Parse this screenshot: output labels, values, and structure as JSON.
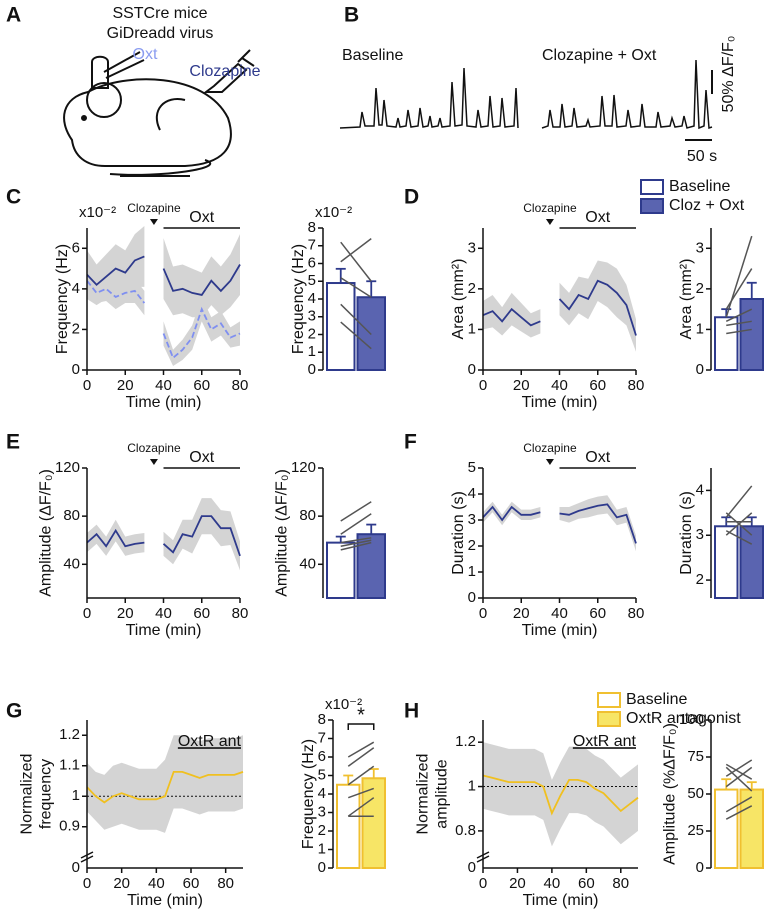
{
  "panel_labels": [
    "A",
    "B",
    "C",
    "D",
    "E",
    "F",
    "G",
    "H"
  ],
  "panel_a": {
    "line1": "SSTCre mice",
    "line2": "GiDreadd virus",
    "oxt": "Oxt",
    "clozapine": "Clozapine"
  },
  "panel_b": {
    "baseline": "Baseline",
    "treatment": "Clozapine + Oxt",
    "scale_y": "50% ΔF/F₀",
    "scale_x": "50 s"
  },
  "chart_data": [
    {
      "type": "line",
      "xlabel": "Time (min)",
      "ylabel": "Frequency (Hz)",
      "multiplier": "x10⁻²",
      "marker_label": "Clozapine",
      "period_label": "Oxt",
      "x": [
        0,
        5,
        10,
        15,
        20,
        25,
        30,
        35,
        40,
        45,
        50,
        55,
        60,
        65,
        70,
        75,
        80
      ],
      "xlim": [
        0,
        80
      ],
      "xticks": [
        0,
        20,
        40,
        60,
        80
      ],
      "ylim": [
        0,
        7
      ],
      "yticks": [
        0,
        2,
        4,
        6
      ],
      "band_color": "#d4d4d4",
      "series": [
        {
          "color": "#2e3a8c",
          "dashed": false,
          "values": [
            4.7,
            4.2,
            4.6,
            5.0,
            4.8,
            5.4,
            5.6,
            null,
            5.0,
            3.9,
            4.0,
            3.8,
            3.7,
            4.4,
            3.9,
            4.4,
            5.2
          ],
          "errors": [
            1.2,
            1.0,
            1.1,
            1.2,
            1.1,
            1.3,
            1.5,
            null,
            1.5,
            1.2,
            1.2,
            1.2,
            1.1,
            1.2,
            1.2,
            1.3,
            1.5
          ]
        },
        {
          "color": "#7f8ff0",
          "dashed": true,
          "values": [
            4.4,
            3.8,
            4.0,
            3.6,
            3.8,
            3.9,
            3.3,
            null,
            1.8,
            0.6,
            1.0,
            1.6,
            3.0,
            2.0,
            2.3,
            1.6,
            1.8
          ],
          "errors": [
            0.5,
            0.5,
            0.6,
            0.6,
            0.5,
            0.6,
            0.6,
            null,
            0.6,
            0.4,
            0.5,
            0.6,
            0.6,
            0.6,
            0.6,
            0.5,
            0.6
          ]
        }
      ]
    },
    {
      "type": "bar",
      "ylabel": "Frequency (Hz)",
      "multiplier": "x10⁻²",
      "ylim": [
        0,
        8
      ],
      "yticks": [
        0,
        1,
        2,
        3,
        4,
        5,
        6,
        7,
        8
      ],
      "series": [
        {
          "color": "#2e3a8c",
          "fill": "#ffffff",
          "values": [
            4.9
          ],
          "errors": [
            0.8
          ]
        },
        {
          "color": "#2e3a8c",
          "fill": "#5a64b0",
          "values": [
            4.1
          ],
          "errors": [
            0.9
          ]
        }
      ],
      "pair_color": "#555555",
      "pairs": [
        [
          6.1,
          7.4
        ],
        [
          7.2,
          5.0
        ],
        [
          5.2,
          4.1
        ],
        [
          3.7,
          2.0
        ],
        [
          2.7,
          1.2
        ]
      ]
    },
    {
      "type": "line",
      "xlabel": "Time (min)",
      "ylabel": "Area (mm²)",
      "marker_label": "Clozapine",
      "period_label": "Oxt",
      "x": [
        0,
        5,
        10,
        15,
        20,
        25,
        30,
        35,
        40,
        45,
        50,
        55,
        60,
        65,
        70,
        75,
        80
      ],
      "xlim": [
        0,
        80
      ],
      "xticks": [
        0,
        20,
        40,
        60,
        80
      ],
      "ylim": [
        0,
        3.5
      ],
      "yticks": [
        0,
        1,
        2,
        3
      ],
      "band_color": "#d4d4d4",
      "series": [
        {
          "color": "#2e3a8c",
          "dashed": false,
          "values": [
            1.35,
            1.45,
            1.2,
            1.5,
            1.3,
            1.1,
            1.2,
            null,
            1.75,
            1.5,
            1.85,
            1.75,
            2.2,
            2.1,
            1.9,
            1.6,
            0.85
          ],
          "errors": [
            0.35,
            0.4,
            0.35,
            0.4,
            0.35,
            0.3,
            0.3,
            null,
            0.4,
            0.4,
            0.45,
            0.5,
            0.5,
            0.55,
            0.6,
            0.5,
            0.4
          ]
        }
      ]
    },
    {
      "type": "bar",
      "ylabel": "Area (mm²)",
      "ylim": [
        0,
        3.5
      ],
      "yticks": [
        0,
        1,
        2,
        3
      ],
      "legend": true,
      "series": [
        {
          "name": "Baseline",
          "color": "#2e3a8c",
          "fill": "#ffffff",
          "values": [
            1.3
          ],
          "errors": [
            0.2
          ]
        },
        {
          "name": "Cloz + Oxt",
          "color": "#2e3a8c",
          "fill": "#5a64b0",
          "values": [
            1.75
          ],
          "errors": [
            0.4
          ]
        }
      ],
      "pair_color": "#555555",
      "pairs": [
        [
          1.3,
          3.3
        ],
        [
          1.5,
          2.5
        ],
        [
          1.2,
          1.5
        ],
        [
          1.1,
          1.2
        ],
        [
          0.9,
          1.0
        ]
      ]
    },
    {
      "type": "line",
      "xlabel": "Time (min)",
      "ylabel": "Amplitude (ΔF/F₀)",
      "marker_label": "Clozapine",
      "period_label": "Oxt",
      "x": [
        0,
        5,
        10,
        15,
        20,
        25,
        30,
        35,
        40,
        45,
        50,
        55,
        60,
        65,
        70,
        75,
        80
      ],
      "xlim": [
        0,
        80
      ],
      "xticks": [
        0,
        20,
        40,
        60,
        80
      ],
      "ylim": [
        12,
        120
      ],
      "yticks": [
        40,
        80,
        120
      ],
      "band_color": "#d4d4d4",
      "series": [
        {
          "color": "#2e3a8c",
          "dashed": false,
          "values": [
            58,
            65,
            55,
            68,
            55,
            57,
            58,
            null,
            57,
            50,
            65,
            63,
            80,
            80,
            70,
            70,
            47
          ],
          "errors": [
            8,
            8,
            8,
            9,
            8,
            8,
            8,
            null,
            10,
            10,
            12,
            14,
            15,
            15,
            15,
            14,
            12
          ]
        }
      ]
    },
    {
      "type": "bar",
      "ylabel": "Amplitude (ΔF/F₀)",
      "ylim": [
        12,
        120
      ],
      "yticks": [
        40,
        80,
        120
      ],
      "series": [
        {
          "color": "#2e3a8c",
          "fill": "#ffffff",
          "values": [
            58
          ],
          "errors": [
            5
          ]
        },
        {
          "color": "#2e3a8c",
          "fill": "#5a64b0",
          "values": [
            65
          ],
          "errors": [
            8
          ]
        }
      ],
      "pair_color": "#555555",
      "pairs": [
        [
          76,
          92
        ],
        [
          65,
          82
        ],
        [
          58,
          62
        ],
        [
          55,
          60
        ],
        [
          52,
          58
        ]
      ]
    },
    {
      "type": "line",
      "xlabel": "Time (min)",
      "ylabel": "Duration (s)",
      "marker_label": "Clozapine",
      "period_label": "Oxt",
      "x": [
        0,
        5,
        10,
        15,
        20,
        25,
        30,
        35,
        40,
        45,
        50,
        55,
        60,
        65,
        70,
        75,
        80
      ],
      "xlim": [
        0,
        80
      ],
      "xticks": [
        0,
        20,
        40,
        60,
        80
      ],
      "ylim": [
        0,
        5
      ],
      "yticks": [
        0,
        1,
        2,
        3,
        4,
        5
      ],
      "band_color": "#d4d4d4",
      "series": [
        {
          "color": "#2e3a8c",
          "dashed": false,
          "values": [
            3.1,
            3.5,
            3.0,
            3.5,
            3.2,
            3.2,
            3.3,
            null,
            3.25,
            3.2,
            3.35,
            3.45,
            3.55,
            3.6,
            3.1,
            3.2,
            2.1
          ],
          "errors": [
            0.2,
            0.2,
            0.2,
            0.2,
            0.2,
            0.2,
            0.2,
            null,
            0.25,
            0.3,
            0.3,
            0.35,
            0.35,
            0.35,
            0.3,
            0.3,
            0.3
          ]
        }
      ]
    },
    {
      "type": "bar",
      "ylabel": "Duration (s)",
      "ylim": [
        1.6,
        4.5
      ],
      "yticks": [
        2,
        3,
        4
      ],
      "series": [
        {
          "color": "#2e3a8c",
          "fill": "#ffffff",
          "values": [
            3.2
          ],
          "errors": [
            0.2
          ]
        },
        {
          "color": "#2e3a8c",
          "fill": "#5a64b0",
          "values": [
            3.2
          ],
          "errors": [
            0.2
          ]
        }
      ],
      "pair_color": "#555555",
      "pairs": [
        [
          3.4,
          4.1
        ],
        [
          3.5,
          3.0
        ],
        [
          3.3,
          3.3
        ],
        [
          3.0,
          3.5
        ],
        [
          3.1,
          2.8
        ]
      ]
    },
    {
      "type": "line",
      "xlabel": "Time (min)",
      "ylabel": [
        "Normalized",
        "frequency"
      ],
      "corner_label": "OxtR ant",
      "x": [
        0,
        5,
        10,
        15,
        20,
        25,
        30,
        35,
        40,
        45,
        50,
        55,
        60,
        65,
        70,
        75,
        80,
        85,
        90
      ],
      "xlim": [
        0,
        90
      ],
      "xticks": [
        0,
        20,
        40,
        60,
        80
      ],
      "ylim": [
        0.85,
        1.25
      ],
      "yticks": [
        0.9,
        1,
        1.1,
        1.2
      ],
      "y_break_label": 0,
      "ref_line": 1,
      "band_color": "#d4d4d4",
      "series": [
        {
          "color": "#f0c020",
          "dashed": false,
          "values": [
            1.03,
            1.0,
            0.98,
            1.0,
            1.01,
            1.0,
            0.99,
            0.99,
            0.99,
            1.0,
            1.08,
            1.08,
            1.07,
            1.06,
            1.07,
            1.07,
            1.07,
            1.07,
            1.08
          ],
          "errors": [
            0.08,
            0.08,
            0.09,
            0.1,
            0.1,
            0.1,
            0.1,
            0.1,
            0.1,
            0.12,
            0.12,
            0.12,
            0.12,
            0.12,
            0.12,
            0.12,
            0.12,
            0.12,
            0.12
          ]
        }
      ]
    },
    {
      "type": "bar",
      "ylabel": "Frequency (Hz)",
      "multiplier": "x10⁻²",
      "ylim": [
        0,
        8
      ],
      "yticks": [
        0,
        1,
        2,
        3,
        4,
        5,
        6,
        7,
        8
      ],
      "significance": "*",
      "series": [
        {
          "color": "#f0c030",
          "fill": "#ffffff",
          "values": [
            4.5
          ],
          "errors": [
            0.5
          ]
        },
        {
          "color": "#f0c030",
          "fill": "#f7e566",
          "values": [
            4.85
          ],
          "errors": [
            0.5
          ]
        }
      ],
      "pair_color": "#555555",
      "pairs": [
        [
          6.0,
          6.8
        ],
        [
          5.5,
          6.5
        ],
        [
          4.5,
          5.5
        ],
        [
          3.8,
          4.3
        ],
        [
          2.8,
          3.8
        ],
        [
          2.8,
          2.8
        ]
      ]
    },
    {
      "type": "line",
      "xlabel": "Time (min)",
      "ylabel": [
        "Normalized",
        "amplitude"
      ],
      "corner_label": "OxtR ant",
      "x": [
        0,
        5,
        10,
        15,
        20,
        25,
        30,
        35,
        40,
        45,
        50,
        55,
        60,
        65,
        70,
        75,
        80,
        85,
        90
      ],
      "xlim": [
        0,
        90
      ],
      "xticks": [
        0,
        20,
        40,
        60,
        80
      ],
      "ylim": [
        0.75,
        1.3
      ],
      "yticks": [
        0.8,
        1,
        1.2
      ],
      "y_break_label": 0,
      "ref_line": 1,
      "band_color": "#d4d4d4",
      "series": [
        {
          "color": "#f0c020",
          "dashed": false,
          "values": [
            1.05,
            1.04,
            1.03,
            1.02,
            1.02,
            1.02,
            1.02,
            1.0,
            0.88,
            0.96,
            1.03,
            1.03,
            1.02,
            0.99,
            0.97,
            0.93,
            0.89,
            0.92,
            0.95
          ],
          "errors": [
            0.15,
            0.15,
            0.15,
            0.15,
            0.15,
            0.15,
            0.15,
            0.15,
            0.15,
            0.15,
            0.15,
            0.15,
            0.15,
            0.15,
            0.15,
            0.15,
            0.15,
            0.15,
            0.15
          ]
        }
      ]
    },
    {
      "type": "bar",
      "ylabel": "Amplitude (%ΔF/F₀)",
      "ylim": [
        0,
        100
      ],
      "yticks": [
        0,
        25,
        50,
        75,
        100
      ],
      "legend": true,
      "series": [
        {
          "name": "Baseline",
          "color": "#f0c030",
          "fill": "#ffffff",
          "values": [
            53
          ],
          "errors": [
            7
          ]
        },
        {
          "name": "OxtR antagonist",
          "color": "#f0c030",
          "fill": "#f7e566",
          "values": [
            53
          ],
          "errors": [
            5
          ]
        }
      ],
      "pair_color": "#555555",
      "pairs": [
        [
          70,
          60
        ],
        [
          68,
          52
        ],
        [
          62,
          73
        ],
        [
          55,
          68
        ],
        [
          38,
          48
        ],
        [
          33,
          42
        ]
      ]
    }
  ]
}
